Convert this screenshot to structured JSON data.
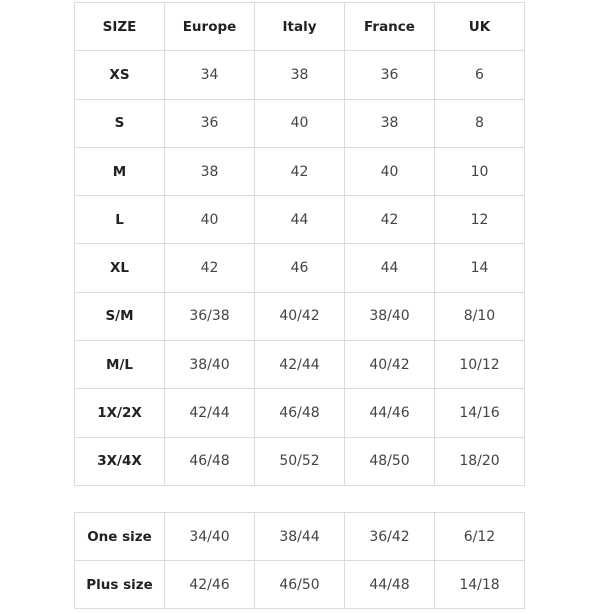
{
  "size_chart": {
    "headers": [
      "SIZE",
      "Europe",
      "Italy",
      "France",
      "UK"
    ],
    "rows": [
      [
        "XS",
        "34",
        "38",
        "36",
        "6"
      ],
      [
        "S",
        "36",
        "40",
        "38",
        "8"
      ],
      [
        "M",
        "38",
        "42",
        "40",
        "10"
      ],
      [
        "L",
        "40",
        "44",
        "42",
        "12"
      ],
      [
        "XL",
        "42",
        "46",
        "44",
        "14"
      ],
      [
        "S/M",
        "36/38",
        "40/42",
        "38/40",
        "8/10"
      ],
      [
        "M/L",
        "38/40",
        "42/44",
        "40/42",
        "10/12"
      ],
      [
        "1X/2X",
        "42/44",
        "46/48",
        "44/46",
        "14/16"
      ],
      [
        "3X/4X",
        "46/48",
        "50/52",
        "48/50",
        "18/20"
      ]
    ]
  },
  "extra_sizes": {
    "rows": [
      [
        "One size",
        "34/40",
        "38/44",
        "36/42",
        "6/12"
      ],
      [
        "Plus size",
        "42/46",
        "46/50",
        "44/48",
        "14/18"
      ]
    ]
  }
}
